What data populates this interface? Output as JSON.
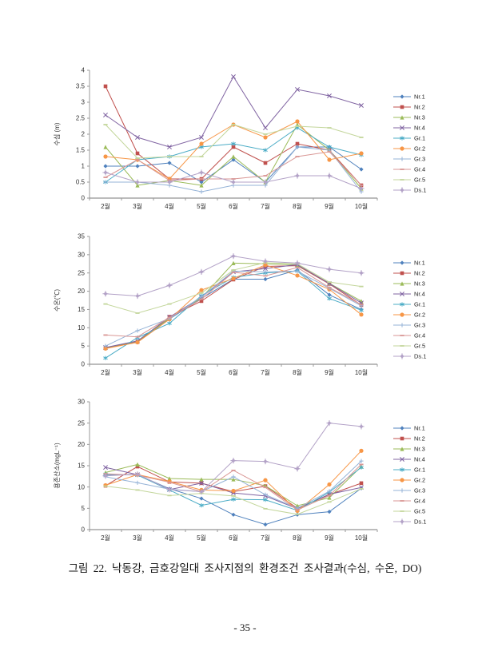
{
  "page": {
    "caption": "그림 22. 낙동강, 금호강일대 조사지점의 환경조건 조사결과(수심, 수온, DO)",
    "page_number": "- 35 -"
  },
  "chart_data": [
    {
      "type": "line",
      "name": "water-depth",
      "title": "",
      "xlabel": "",
      "ylabel": "수심 (m)",
      "ylim": [
        0,
        4
      ],
      "ytick_step": 0.5,
      "grid": false,
      "legend_position": "right",
      "categories": [
        "2월",
        "3월",
        "4월",
        "5월",
        "6월",
        "7월",
        "8월",
        "9월",
        "10월"
      ],
      "series": [
        {
          "name": "Nr.1",
          "color": "#4F81BD",
          "marker": "diamond",
          "values": [
            1.0,
            1.0,
            1.1,
            0.5,
            1.2,
            0.5,
            1.6,
            1.6,
            0.9
          ]
        },
        {
          "name": "Nr.2",
          "color": "#C0504D",
          "marker": "square",
          "values": [
            3.5,
            1.4,
            0.6,
            0.6,
            1.6,
            1.1,
            1.7,
            1.5,
            0.4
          ]
        },
        {
          "name": "Nr.3",
          "color": "#9BBB59",
          "marker": "triangle",
          "values": [
            1.6,
            0.4,
            0.55,
            0.4,
            1.3,
            0.5,
            2.3,
            1.5,
            0.3
          ]
        },
        {
          "name": "Nr.4",
          "color": "#8064A2",
          "marker": "x",
          "values": [
            2.6,
            1.9,
            1.6,
            1.9,
            3.8,
            2.2,
            3.4,
            3.2,
            2.9
          ]
        },
        {
          "name": "Gr.1",
          "color": "#4BACC6",
          "marker": "asterisk",
          "values": [
            0.5,
            1.2,
            1.3,
            1.6,
            1.7,
            1.5,
            2.2,
            1.6,
            1.35
          ]
        },
        {
          "name": "Gr.2",
          "color": "#F79646",
          "marker": "circle",
          "values": [
            1.3,
            1.2,
            0.6,
            1.7,
            2.3,
            1.9,
            2.4,
            1.2,
            1.4
          ]
        },
        {
          "name": "Gr.3",
          "color": "#95B3D7",
          "marker": "plus",
          "values": [
            0.5,
            0.5,
            0.4,
            0.2,
            0.4,
            0.4,
            1.6,
            1.5,
            0.2
          ]
        },
        {
          "name": "Gr.4",
          "color": "#D99694",
          "marker": "dash",
          "values": [
            0.65,
            1.2,
            0.55,
            0.6,
            0.6,
            0.7,
            1.3,
            1.45,
            0.4
          ]
        },
        {
          "name": "Gr.5",
          "color": "#C3D69B",
          "marker": "dash",
          "values": [
            2.3,
            1.25,
            1.3,
            1.3,
            2.3,
            2.0,
            2.25,
            2.2,
            1.9
          ]
        },
        {
          "name": "Ds.1",
          "color": "#B3A2C7",
          "marker": "diamond-plus",
          "values": [
            0.8,
            0.5,
            0.5,
            0.8,
            0.5,
            0.5,
            0.7,
            0.7,
            0.3
          ]
        }
      ]
    },
    {
      "type": "line",
      "name": "water-temperature",
      "title": "",
      "xlabel": "",
      "ylabel": "수온(℃)",
      "ylim": [
        0,
        35
      ],
      "ytick_step": 5,
      "grid": false,
      "legend_position": "right",
      "categories": [
        "2월",
        "3월",
        "4월",
        "5월",
        "6월",
        "7월",
        "8월",
        "9월",
        "10월"
      ],
      "series": [
        {
          "name": "Nr.1",
          "color": "#4F81BD",
          "marker": "diamond",
          "values": [
            4.5,
            6.2,
            12.4,
            18.0,
            23.3,
            23.3,
            25.8,
            19.0,
            15.0
          ]
        },
        {
          "name": "Nr.2",
          "color": "#C0504D",
          "marker": "square",
          "values": [
            4.4,
            6.1,
            13.0,
            17.3,
            23.2,
            26.8,
            27.0,
            22.0,
            16.2
          ]
        },
        {
          "name": "Nr.3",
          "color": "#9BBB59",
          "marker": "triangle",
          "values": [
            4.5,
            6.3,
            12.6,
            18.2,
            27.7,
            27.5,
            27.2,
            22.2,
            17.3
          ]
        },
        {
          "name": "Nr.4",
          "color": "#8064A2",
          "marker": "x",
          "values": [
            4.6,
            6.4,
            12.9,
            18.4,
            25.3,
            26.2,
            27.3,
            22.1,
            16.8
          ]
        },
        {
          "name": "Gr.1",
          "color": "#4BACC6",
          "marker": "asterisk",
          "values": [
            1.7,
            7.3,
            11.2,
            18.8,
            23.8,
            25.0,
            25.5,
            18.0,
            14.8
          ]
        },
        {
          "name": "Gr.2",
          "color": "#F79646",
          "marker": "circle",
          "values": [
            4.3,
            6.0,
            12.3,
            20.3,
            23.5,
            27.2,
            24.3,
            20.5,
            13.6
          ]
        },
        {
          "name": "Gr.3",
          "color": "#95B3D7",
          "marker": "plus",
          "values": [
            5.0,
            9.2,
            12.5,
            18.5,
            25.5,
            25.3,
            25.5,
            20.8,
            16.0
          ]
        },
        {
          "name": "Gr.4",
          "color": "#D99694",
          "marker": "dash",
          "values": [
            8.0,
            7.5,
            12.8,
            17.8,
            25.2,
            24.2,
            26.5,
            21.0,
            16.3
          ]
        },
        {
          "name": "Gr.5",
          "color": "#C3D69B",
          "marker": "dash",
          "values": [
            16.5,
            14.0,
            16.5,
            19.5,
            25.8,
            27.8,
            27.5,
            22.5,
            21.3
          ]
        },
        {
          "name": "Ds.1",
          "color": "#B3A2C7",
          "marker": "diamond-plus",
          "values": [
            19.3,
            18.7,
            21.6,
            25.3,
            29.6,
            28.2,
            27.7,
            26.0,
            25.0
          ]
        }
      ]
    },
    {
      "type": "line",
      "name": "dissolved-oxygen",
      "title": "",
      "xlabel": "",
      "ylabel": "용존산소(mgL⁻¹)",
      "ylim": [
        0,
        30
      ],
      "ytick_step": 5,
      "grid": false,
      "legend_position": "right",
      "categories": [
        "2월",
        "3월",
        "4월",
        "5월",
        "6월",
        "7월",
        "8월",
        "9월",
        "10월"
      ],
      "series": [
        {
          "name": "Nr.1",
          "color": "#4F81BD",
          "marker": "diamond",
          "values": [
            12.9,
            12.9,
            9.6,
            7.3,
            3.5,
            1.2,
            3.5,
            4.2,
            9.7
          ]
        },
        {
          "name": "Nr.2",
          "color": "#C0504D",
          "marker": "square",
          "values": [
            10.3,
            14.8,
            11.2,
            10.9,
            8.9,
            10.2,
            5.0,
            8.2,
            10.9
          ]
        },
        {
          "name": "Nr.3",
          "color": "#9BBB59",
          "marker": "triangle",
          "values": [
            13.4,
            15.3,
            12.0,
            11.8,
            11.8,
            10.3,
            5.6,
            7.5,
            14.8
          ]
        },
        {
          "name": "Nr.4",
          "color": "#8064A2",
          "marker": "x",
          "values": [
            14.6,
            12.9,
            9.4,
            10.9,
            8.6,
            7.9,
            4.9,
            8.3,
            9.9
          ]
        },
        {
          "name": "Gr.1",
          "color": "#4BACC6",
          "marker": "asterisk",
          "values": [
            13.0,
            12.8,
            9.3,
            5.7,
            7.1,
            7.0,
            4.5,
            8.8,
            14.6
          ]
        },
        {
          "name": "Gr.2",
          "color": "#F79646",
          "marker": "circle",
          "values": [
            10.4,
            12.9,
            11.3,
            9.3,
            9.1,
            11.6,
            4.4,
            10.6,
            18.5
          ]
        },
        {
          "name": "Gr.3",
          "color": "#95B3D7",
          "marker": "plus",
          "values": [
            12.4,
            11.0,
            9.5,
            8.9,
            12.4,
            8.2,
            5.0,
            9.0,
            16.1
          ]
        },
        {
          "name": "Gr.4",
          "color": "#D99694",
          "marker": "dash",
          "values": [
            13.1,
            12.8,
            11.1,
            8.9,
            13.9,
            9.9,
            4.6,
            8.0,
            15.3
          ]
        },
        {
          "name": "Gr.5",
          "color": "#C3D69B",
          "marker": "dash",
          "values": [
            10.2,
            9.3,
            8.0,
            8.5,
            7.9,
            4.9,
            3.6,
            6.5,
            9.6
          ]
        },
        {
          "name": "Ds.1",
          "color": "#B3A2C7",
          "marker": "diamond-plus",
          "values": [
            12.6,
            13.0,
            9.4,
            8.9,
            16.2,
            16.0,
            14.3,
            25.0,
            24.2
          ]
        }
      ]
    }
  ]
}
